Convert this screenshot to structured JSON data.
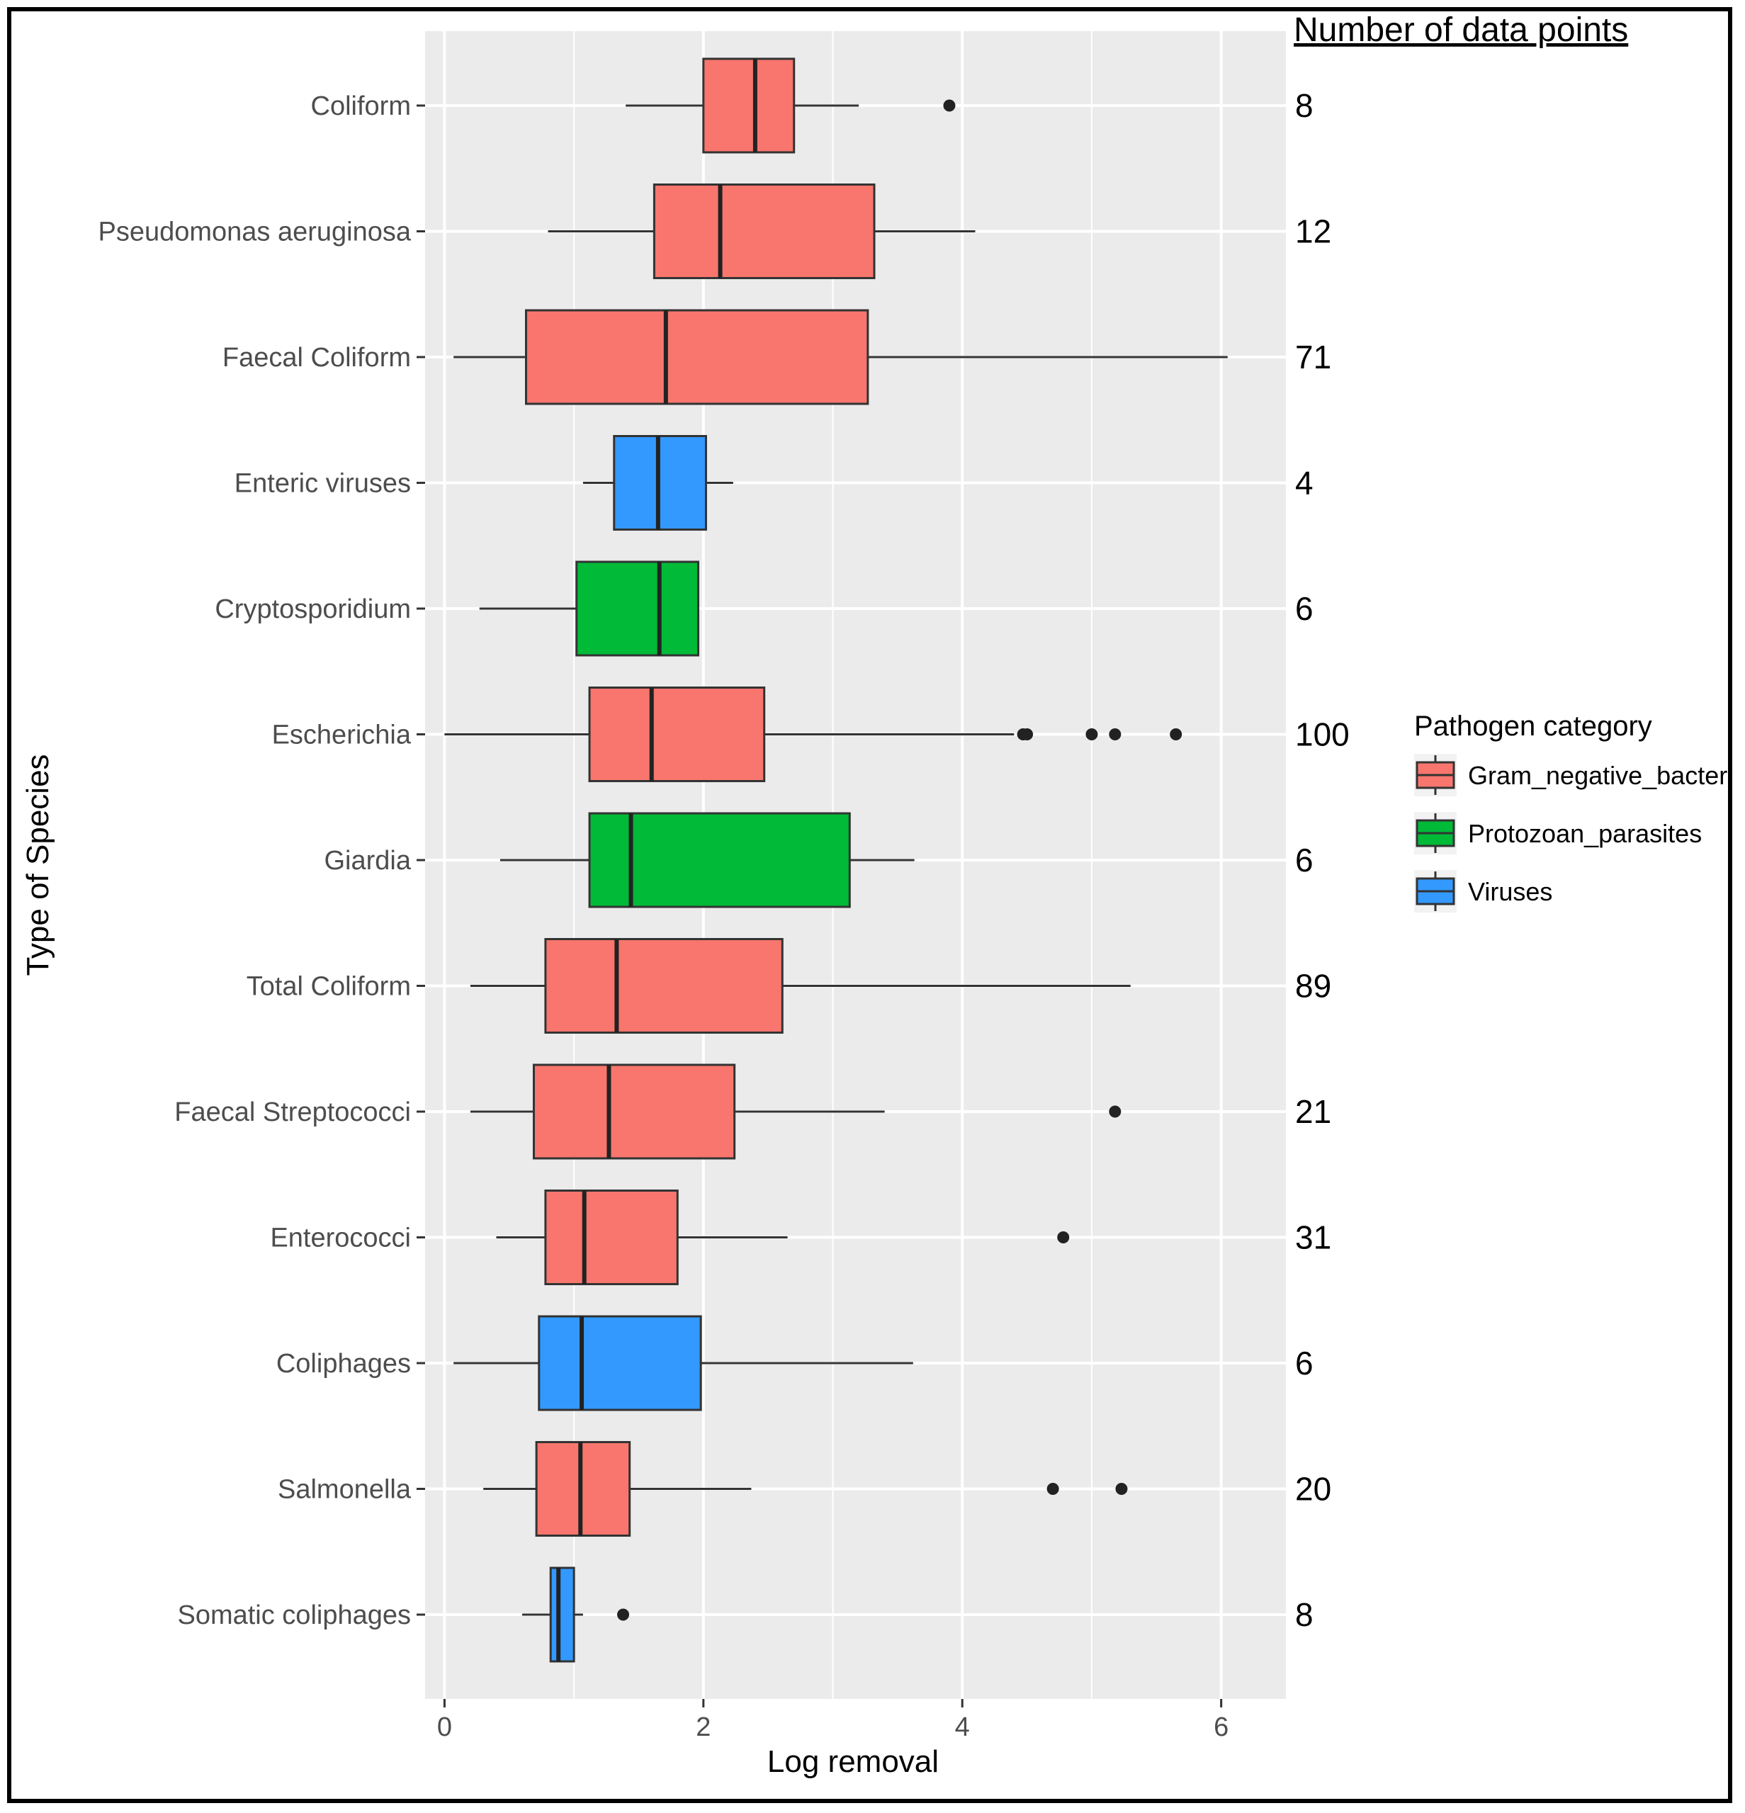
{
  "chart_data": {
    "type": "boxplot",
    "orientation": "horizontal",
    "title": "",
    "xlabel": "Log removal",
    "ylabel": "Type of Species",
    "xlim": [
      -0.15,
      6.5
    ],
    "x_ticks": [
      0,
      2,
      4,
      6
    ],
    "grid": true,
    "count_header": "Number of data points",
    "legend": {
      "title": "Pathogen category",
      "position": "right",
      "entries": [
        {
          "key": "Gram_negative_bacteria",
          "label": "Gram_negative_bacteria",
          "color": "#F8766D"
        },
        {
          "key": "Protozoan_parasites",
          "label": "Protozoan_parasites",
          "color": "#00BA38"
        },
        {
          "key": "Viruses",
          "label": "Viruses",
          "color": "#3399FF"
        }
      ]
    },
    "categories": [
      {
        "name": "Coliform",
        "category": "Gram_negative_bacteria",
        "min": 1.4,
        "q1": 2.0,
        "median": 2.4,
        "q3": 2.7,
        "max": 3.2,
        "outliers": [
          3.9
        ],
        "n": "8"
      },
      {
        "name": "Pseudomonas aeruginosa",
        "category": "Gram_negative_bacteria",
        "min": 0.8,
        "q1": 1.62,
        "median": 2.13,
        "q3": 3.32,
        "max": 4.1,
        "outliers": [],
        "n": "12"
      },
      {
        "name": "Faecal Coliform",
        "category": "Gram_negative_bacteria",
        "min": 0.07,
        "q1": 0.63,
        "median": 1.71,
        "q3": 3.27,
        "max": 6.05,
        "outliers": [],
        "n": "71"
      },
      {
        "name": "Enteric viruses",
        "category": "Viruses",
        "min": 1.07,
        "q1": 1.31,
        "median": 1.65,
        "q3": 2.02,
        "max": 2.23,
        "outliers": [],
        "n": "4"
      },
      {
        "name": "Cryptosporidium",
        "category": "Protozoan_parasites",
        "min": 0.27,
        "q1": 1.02,
        "median": 1.66,
        "q3": 1.96,
        "max": 1.96,
        "outliers": [],
        "n": "6"
      },
      {
        "name": "Escherichia",
        "category": "Gram_negative_bacteria",
        "min": 0.0,
        "q1": 1.12,
        "median": 1.6,
        "q3": 2.47,
        "max": 4.4,
        "outliers": [
          4.47,
          4.5,
          5.0,
          5.18,
          5.65
        ],
        "n": "100"
      },
      {
        "name": "Giardia",
        "category": "Protozoan_parasites",
        "min": 0.43,
        "q1": 1.12,
        "median": 1.44,
        "q3": 3.13,
        "max": 3.63,
        "outliers": [],
        "n": "6"
      },
      {
        "name": "Total Coliform",
        "category": "Gram_negative_bacteria",
        "min": 0.2,
        "q1": 0.78,
        "median": 1.33,
        "q3": 2.61,
        "max": 5.3,
        "outliers": [],
        "n": "89"
      },
      {
        "name": "Faecal Streptococci",
        "category": "Gram_negative_bacteria",
        "min": 0.2,
        "q1": 0.69,
        "median": 1.27,
        "q3": 2.24,
        "max": 3.4,
        "outliers": [
          5.18
        ],
        "n": "21"
      },
      {
        "name": "Enterococci",
        "category": "Gram_negative_bacteria",
        "min": 0.4,
        "q1": 0.78,
        "median": 1.08,
        "q3": 1.8,
        "max": 2.65,
        "outliers": [
          4.78
        ],
        "n": "31"
      },
      {
        "name": "Coliphages",
        "category": "Viruses",
        "min": 0.07,
        "q1": 0.73,
        "median": 1.06,
        "q3": 1.98,
        "max": 3.62,
        "outliers": [],
        "n": "6"
      },
      {
        "name": "Salmonella",
        "category": "Gram_negative_bacteria",
        "min": 0.3,
        "q1": 0.71,
        "median": 1.05,
        "q3": 1.43,
        "max": 2.37,
        "outliers": [
          4.7,
          5.23
        ],
        "n": "20"
      },
      {
        "name": "Somatic coliphages",
        "category": "Viruses",
        "min": 0.6,
        "q1": 0.82,
        "median": 0.88,
        "q3": 1.0,
        "max": 1.07,
        "outliers": [
          1.38
        ],
        "n": "8"
      }
    ]
  }
}
